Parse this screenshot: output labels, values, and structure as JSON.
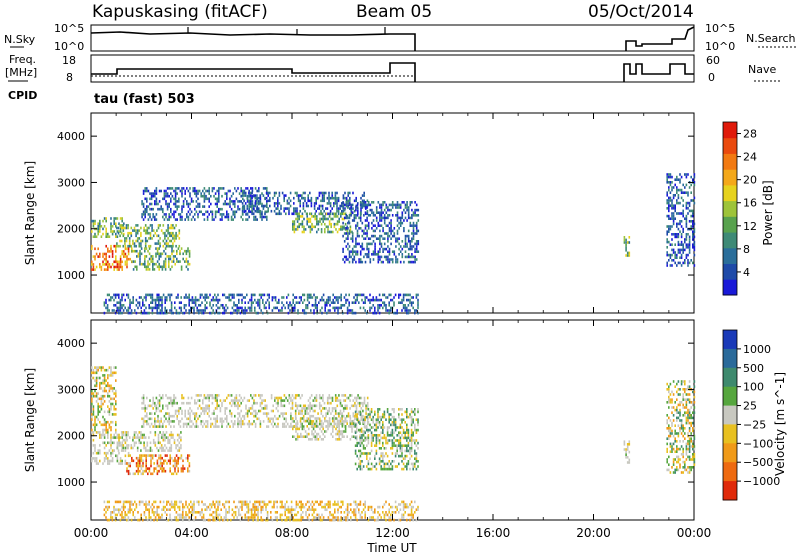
{
  "header": {
    "station": "Kapuskasing (fitACF)",
    "beam": "Beam 05",
    "date": "05/Oct/2014"
  },
  "noise_panel": {
    "left_label": "N.Sky",
    "right_label": "N.Search",
    "left_ticks": [
      "10^5",
      "10^0"
    ],
    "right_ticks": [
      "10^5",
      "10^0"
    ]
  },
  "freq_panel": {
    "left_label_1": "Freq.",
    "left_label_2": "[MHz]",
    "right_label": "Nave",
    "left_ticks": [
      "18",
      "8"
    ],
    "right_ticks": [
      "60",
      "0"
    ],
    "cpid_label": "CPID",
    "cpid_value": "tau (fast) 503"
  },
  "chart_data": [
    {
      "type": "heatmap",
      "title": "",
      "xlabel": "Time UT",
      "ylabel": "Slant Range [km]",
      "x_ticks": [
        "00:00",
        "04:00",
        "08:00",
        "12:00",
        "16:00",
        "20:00",
        "00:00"
      ],
      "x_range_hours": [
        0,
        24
      ],
      "y_ticks": [
        1000,
        2000,
        3000,
        4000
      ],
      "y_range_km": [
        180,
        4500
      ],
      "colorbar": {
        "label": "Power [dB]",
        "ticks": [
          4,
          8,
          12,
          16,
          20,
          24,
          28
        ],
        "range": [
          0,
          30
        ],
        "colors": [
          "#1a1ad8",
          "#1e4aa8",
          "#2a6e9a",
          "#3e8a76",
          "#58a24e",
          "#9ec43a",
          "#e6d21e",
          "#f4a81a",
          "#f27a12",
          "#ea4a0e",
          "#e01a0a"
        ]
      },
      "echo_regions": [
        {
          "t0": 0.0,
          "t1": 1.3,
          "r0": 1850,
          "r1": 2250,
          "level": "medium"
        },
        {
          "t0": 0.0,
          "t1": 1.6,
          "r0": 1100,
          "r1": 1650,
          "level": "high"
        },
        {
          "t0": 1.6,
          "t1": 3.9,
          "r0": 1150,
          "r1": 1600,
          "level": "medium"
        },
        {
          "t0": 1.0,
          "t1": 3.5,
          "r0": 1650,
          "r1": 2100,
          "level": "medium"
        },
        {
          "t0": 2.0,
          "t1": 7.0,
          "r0": 2200,
          "r1": 2900,
          "level": "low"
        },
        {
          "t0": 6.0,
          "t1": 11.0,
          "r0": 2300,
          "r1": 2800,
          "level": "low"
        },
        {
          "t0": 8.0,
          "t1": 10.4,
          "r0": 1950,
          "r1": 2350,
          "level": "medium"
        },
        {
          "t0": 10.0,
          "t1": 13.0,
          "r0": 1300,
          "r1": 2600,
          "level": "low"
        },
        {
          "t0": 0.5,
          "t1": 13.0,
          "r0": 200,
          "r1": 600,
          "level": "low"
        },
        {
          "t0": 21.2,
          "t1": 21.4,
          "r0": 1400,
          "r1": 1900,
          "level": "medium"
        },
        {
          "t0": 22.9,
          "t1": 24.0,
          "r0": 1200,
          "r1": 3200,
          "level": "low"
        }
      ]
    },
    {
      "type": "heatmap",
      "title": "",
      "xlabel": "Time UT",
      "ylabel": "Slant Range [km]",
      "x_ticks": [
        "00:00",
        "04:00",
        "08:00",
        "12:00",
        "16:00",
        "20:00",
        "00:00"
      ],
      "x_range_hours": [
        0,
        24
      ],
      "y_ticks": [
        1000,
        2000,
        3000,
        4000
      ],
      "y_range_km": [
        180,
        4500
      ],
      "colorbar": {
        "label": "Velocity [m s^-1]",
        "ticks": [
          1000,
          500,
          100,
          25,
          -25,
          -100,
          -500,
          -1000
        ],
        "colors": [
          "#1a3ab8",
          "#2a6a9a",
          "#3e8a6e",
          "#56a63e",
          "#c8c8c0",
          "#e8c020",
          "#f09a18",
          "#ee6a10",
          "#e02a0a"
        ]
      },
      "echo_regions": [
        {
          "t0": 0.0,
          "t1": 1.5,
          "r0": 1400,
          "r1": 2100,
          "level": "neutral"
        },
        {
          "t0": 1.4,
          "t1": 3.9,
          "r0": 1200,
          "r1": 1600,
          "level": "away"
        },
        {
          "t0": 1.0,
          "t1": 3.6,
          "r0": 1700,
          "r1": 2100,
          "level": "neutral"
        },
        {
          "t0": 0.0,
          "t1": 1.0,
          "r0": 2100,
          "r1": 3500,
          "level": "toward-weak"
        },
        {
          "t0": 2.0,
          "t1": 11.0,
          "r0": 2200,
          "r1": 2900,
          "level": "neutral"
        },
        {
          "t0": 8.0,
          "t1": 11.0,
          "r0": 1900,
          "r1": 2400,
          "level": "neutral"
        },
        {
          "t0": 10.5,
          "t1": 13.0,
          "r0": 1300,
          "r1": 2600,
          "level": "toward"
        },
        {
          "t0": 0.5,
          "t1": 13.0,
          "r0": 200,
          "r1": 600,
          "level": "away-weak"
        },
        {
          "t0": 21.2,
          "t1": 21.4,
          "r0": 1400,
          "r1": 1900,
          "level": "neutral"
        },
        {
          "t0": 22.9,
          "t1": 24.0,
          "r0": 1200,
          "r1": 3200,
          "level": "mixed"
        }
      ]
    }
  ]
}
